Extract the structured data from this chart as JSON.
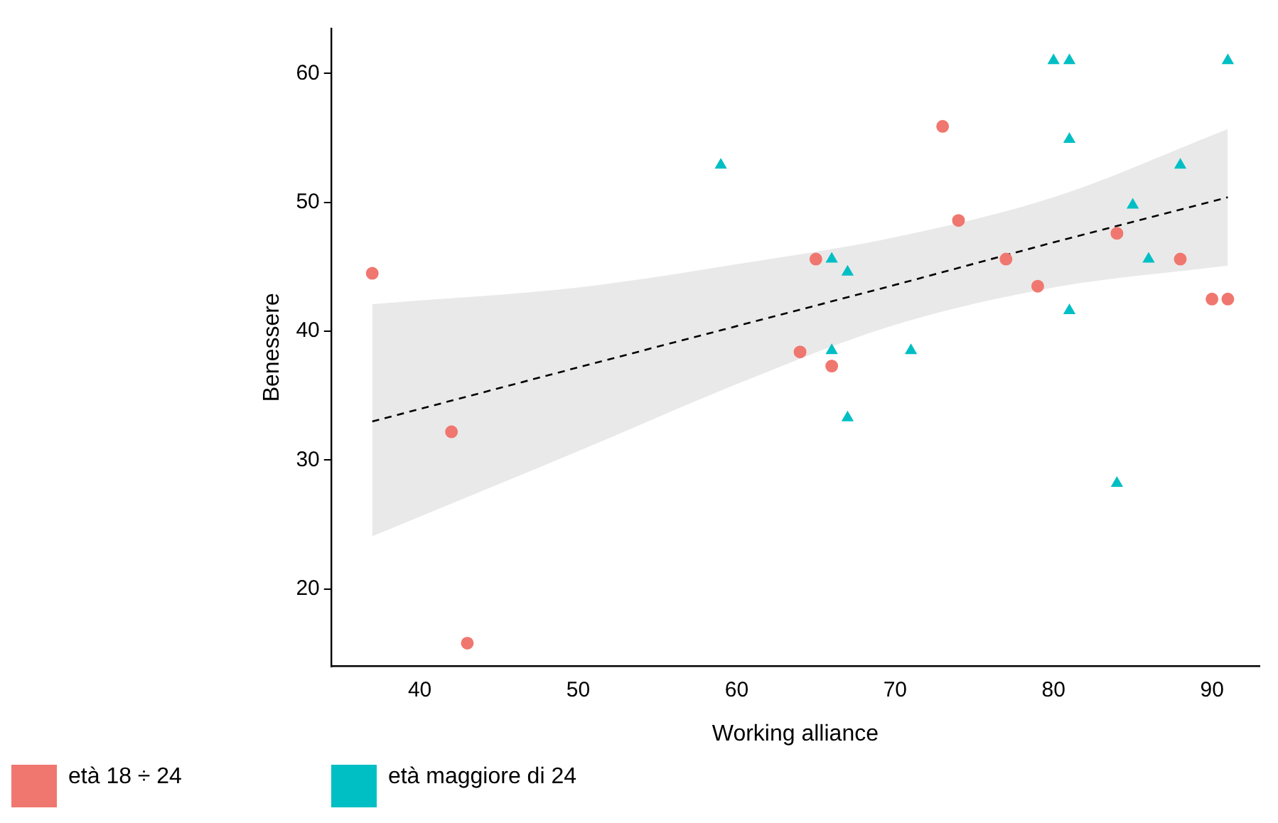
{
  "chart_data": {
    "type": "scatter",
    "xlabel": "Working alliance",
    "ylabel": "Benessere",
    "xlim": [
      34.4,
      93
    ],
    "ylim": [
      14,
      63.5
    ],
    "xticks": [
      40,
      50,
      60,
      70,
      80,
      90
    ],
    "yticks": [
      20,
      30,
      40,
      50,
      60
    ],
    "grid": false,
    "legend": "bottom left",
    "series": [
      {
        "name": "età 18 ÷ 24",
        "color": "#f0776f",
        "marker": "circle",
        "x": [
          37,
          42,
          43,
          64,
          65,
          73,
          74,
          66,
          77,
          79,
          84,
          88,
          90,
          91
        ],
        "values": [
          44.5,
          32.2,
          15.8,
          38.4,
          45.6,
          55.9,
          48.6,
          37.3,
          45.6,
          43.5,
          47.6,
          45.6,
          42.5,
          42.5
        ]
      },
      {
        "name": "età maggiore di 24",
        "color": "#00bfc4",
        "marker": "triangle",
        "x": [
          59,
          80,
          81,
          91,
          81,
          88,
          85,
          66,
          67,
          86,
          81,
          66,
          71,
          67,
          84
        ],
        "values": [
          52.9,
          61,
          61,
          61,
          54.9,
          52.9,
          49.8,
          45.6,
          44.6,
          45.6,
          41.6,
          38.5,
          38.5,
          33.3,
          28.2
        ]
      },
      {
        "type": "line",
        "color": "#000000",
        "line_style": "dashed",
        "marker": "none",
        "x": [
          37,
          50,
          60,
          70,
          80,
          91
        ],
        "values": [
          33.0,
          37.2,
          40.4,
          43.6,
          46.9,
          50.4
        ],
        "lower": [
          24.1,
          30.7,
          35.9,
          40.5,
          43.4,
          45.1
        ],
        "upper": [
          42.1,
          43.4,
          45.2,
          47.3,
          50.4,
          55.7
        ]
      }
    ]
  }
}
